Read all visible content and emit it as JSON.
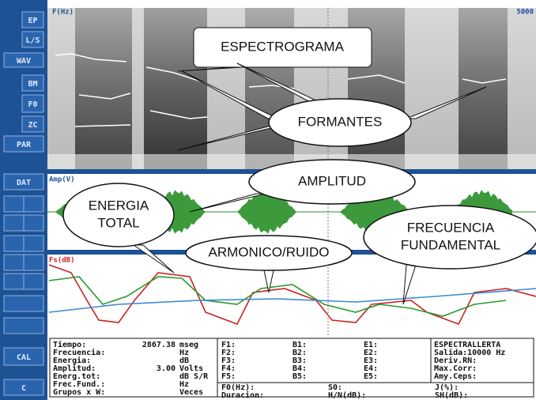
{
  "toolbar": {
    "buttons": [
      "EP",
      "L/S",
      "WAV",
      "BM",
      "F0",
      "ZC",
      "PAR",
      "DAT",
      "CAL",
      "C"
    ]
  },
  "panels": {
    "spectrogram_axis": "F(Hz)",
    "spectrogram_max": "5000",
    "amplitude_axis": "Amp(V)",
    "pitch_axis": "Fs(dB)"
  },
  "callouts": [
    {
      "lines": [
        "ESPECTROGRAMA"
      ]
    },
    {
      "lines": [
        "FORMANTES"
      ]
    },
    {
      "lines": [
        "AMPLITUD"
      ]
    },
    {
      "lines": [
        "ENERGIA",
        "TOTAL"
      ]
    },
    {
      "lines": [
        "ARMONICO/RUIDO"
      ]
    },
    {
      "lines": [
        "FRECUENCIA",
        "FUNDAMENTAL"
      ]
    }
  ],
  "info": {
    "measures": [
      [
        "Tiempo:",
        "2867.38",
        "mseg"
      ],
      [
        "Frecuencia:",
        "",
        "Hz"
      ],
      [
        "Energia:",
        "",
        "dB"
      ],
      [
        "Amplitud:",
        "3.00",
        "Volts"
      ],
      [
        "Energ.tot:",
        "",
        "dB S/R"
      ],
      [
        "Frec.Fund.:",
        "",
        "Hz"
      ],
      [
        "Grupos x W:",
        "",
        "Veces"
      ]
    ],
    "formants": [
      [
        "F1:",
        "B1:",
        "E1:"
      ],
      [
        "F2:",
        "B2:",
        "E2:"
      ],
      [
        "F3:",
        "B3:",
        "E3:"
      ],
      [
        "F4:",
        "B4:",
        "E4:"
      ],
      [
        "F5:",
        "B5:",
        "E5:"
      ]
    ],
    "settings": [
      "ESPECTRALLERTA",
      "Salida:10000 Hz",
      "Deriv.RN:",
      "Max.Corr:",
      "Amy.Ceps:"
    ],
    "voice": [
      "F0(Hz):",
      "S0:",
      "J(%):",
      "Duracion:",
      "H/N(dB):",
      "SH(dB):"
    ]
  }
}
